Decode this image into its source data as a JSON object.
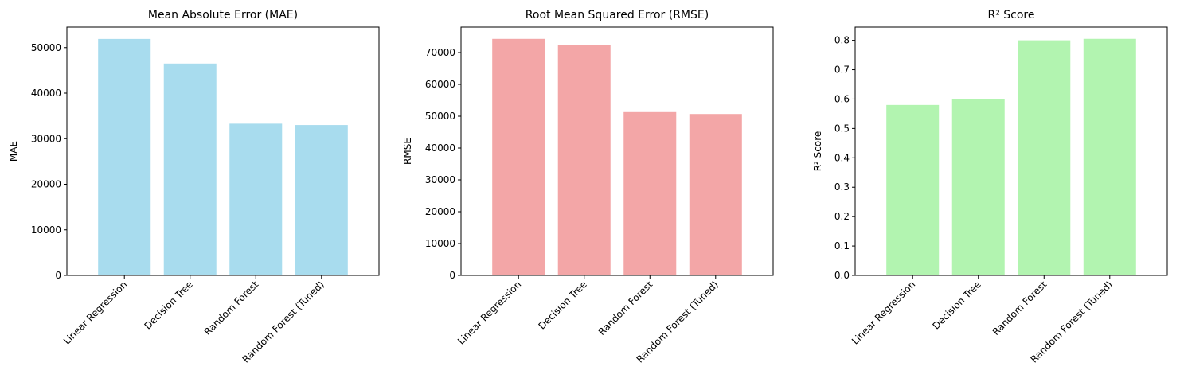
{
  "chart_data": [
    {
      "type": "bar",
      "title": "Mean Absolute Error (MAE)",
      "xlabel": "",
      "ylabel": "MAE",
      "categories": [
        "Linear Regression",
        "Decision Tree",
        "Random Forest",
        "Random Forest (Tuned)"
      ],
      "values": [
        51900,
        46500,
        33300,
        33000
      ],
      "ylim": [
        0,
        54500
      ],
      "yticks": [
        0,
        10000,
        20000,
        30000,
        40000,
        50000
      ],
      "ytick_labels": [
        "0",
        "10000",
        "20000",
        "30000",
        "40000",
        "50000"
      ],
      "color": "#a8dcee",
      "grid": false
    },
    {
      "type": "bar",
      "title": "Root Mean Squared Error (RMSE)",
      "xlabel": "",
      "ylabel": "RMSE",
      "categories": [
        "Linear Regression",
        "Decision Tree",
        "Random Forest",
        "Random Forest (Tuned)"
      ],
      "values": [
        74300,
        72300,
        51300,
        50700
      ],
      "ylim": [
        0,
        78000
      ],
      "yticks": [
        0,
        10000,
        20000,
        30000,
        40000,
        50000,
        60000,
        70000
      ],
      "ytick_labels": [
        "0",
        "10000",
        "20000",
        "30000",
        "40000",
        "50000",
        "60000",
        "70000"
      ],
      "color": "#f3a6a7",
      "grid": false
    },
    {
      "type": "bar",
      "title": "R² Score",
      "xlabel": "",
      "ylabel": "R² Score",
      "categories": [
        "Linear Regression",
        "Decision Tree",
        "Random Forest",
        "Random Forest (Tuned)"
      ],
      "values": [
        0.58,
        0.6,
        0.8,
        0.805
      ],
      "ylim": [
        0,
        0.845
      ],
      "yticks": [
        0,
        0.1,
        0.2,
        0.3,
        0.4,
        0.5,
        0.6,
        0.7,
        0.8
      ],
      "ytick_labels": [
        "0.0",
        "0.1",
        "0.2",
        "0.3",
        "0.4",
        "0.5",
        "0.6",
        "0.7",
        "0.8"
      ],
      "color": "#b2f4b0",
      "grid": false
    }
  ]
}
